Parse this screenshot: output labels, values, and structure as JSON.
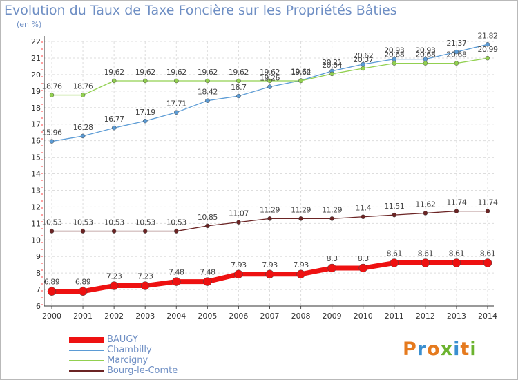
{
  "title": "Evolution du Taux de Taxe Foncière sur les Propriétés Bâties",
  "subtitle": "(en %)",
  "logo": {
    "letters": [
      "P",
      "r",
      "o",
      "x",
      "i",
      "t",
      "i"
    ],
    "colors": [
      "#e57a1e",
      "#3a8fd0",
      "#e57a1e",
      "#6bb32e",
      "#3a8fd0",
      "#e57a1e",
      "#6bb32e"
    ]
  },
  "chart_data": {
    "type": "line",
    "x": [
      2000,
      2001,
      2002,
      2003,
      2004,
      2005,
      2006,
      2007,
      2008,
      2009,
      2010,
      2011,
      2012,
      2013,
      2014
    ],
    "ylim": [
      6,
      22
    ],
    "yticks": [
      6,
      7,
      8,
      9,
      10,
      11,
      12,
      13,
      14,
      15,
      16,
      17,
      18,
      19,
      20,
      21,
      22
    ],
    "grid": true,
    "legend": "bottom-left",
    "series": [
      {
        "name": "Chambilly",
        "color": "#5b9bd5",
        "values": [
          15.96,
          16.28,
          16.77,
          17.19,
          17.71,
          18.42,
          18.7,
          19.26,
          19.64,
          20.21,
          20.62,
          20.93,
          20.93,
          21.37,
          21.82
        ],
        "labels": [
          "15.96",
          "16.28",
          "16.77",
          "17.19",
          "17.71",
          "18.42",
          "18.7",
          "19.26",
          "19.64",
          "20.21",
          "20.62",
          "20.93",
          "20.93",
          "21.37",
          "21.82"
        ]
      },
      {
        "name": "Marcigny",
        "color": "#92d050",
        "values": [
          18.76,
          18.76,
          19.62,
          19.62,
          19.62,
          19.62,
          19.62,
          19.62,
          19.62,
          20.04,
          20.37,
          20.68,
          20.68,
          20.68,
          20.99
        ],
        "labels": [
          "18.76",
          "18.76",
          "19.62",
          "19.62",
          "19.62",
          "19.62",
          "19.62",
          "19.62",
          "19.62",
          "20.04",
          "20.37",
          "20.68",
          "20.68",
          "20.68",
          "20.99"
        ]
      },
      {
        "name": "Bourg-le-Comte",
        "color": "#6b2424",
        "values": [
          10.53,
          10.53,
          10.53,
          10.53,
          10.53,
          10.85,
          11.07,
          11.29,
          11.29,
          11.29,
          11.4,
          11.51,
          11.62,
          11.74,
          11.74
        ],
        "labels": [
          "10.53",
          "10.53",
          "10.53",
          "10.53",
          "10.53",
          "10.85",
          "11.07",
          "11.29",
          "11.29",
          "11.29",
          "11.4",
          "11.51",
          "11.62",
          "11.74",
          "11.74"
        ]
      },
      {
        "name": "BAUGY",
        "color": "#ee1111",
        "values": [
          6.89,
          6.89,
          7.23,
          7.23,
          7.48,
          7.48,
          7.93,
          7.93,
          7.93,
          8.3,
          8.3,
          8.61,
          8.61,
          8.61,
          8.61
        ],
        "labels": [
          "6.89",
          "6.89",
          "7.23",
          "7.23",
          "7.48",
          "7.48",
          "7.93",
          "7.93",
          "7.93",
          "8.3",
          "8.3",
          "8.61",
          "8.61",
          "8.61",
          "8.61"
        ]
      }
    ],
    "legend_order": [
      "BAUGY",
      "Chambilly",
      "Marcigny",
      "Bourg-le-Comte"
    ]
  }
}
